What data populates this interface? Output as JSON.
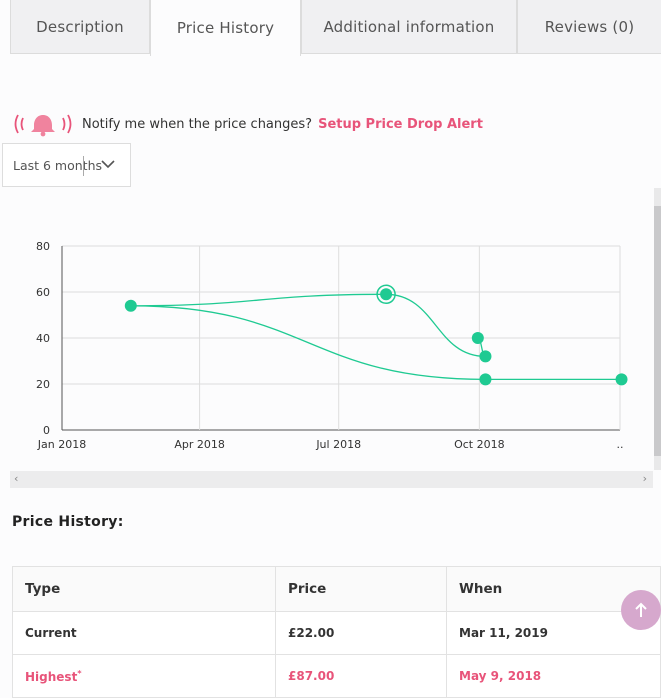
{
  "tabs": [
    {
      "label": "Description",
      "active": false
    },
    {
      "label": "Price History",
      "active": true
    },
    {
      "label": "Additional information",
      "active": false
    },
    {
      "label": "Reviews (0)",
      "active": false
    }
  ],
  "notify": {
    "text": "Notify me when the price changes?",
    "link": "Setup Price Drop Alert",
    "icon": "bell-alert-icon"
  },
  "range": {
    "selected": "Last 6 months"
  },
  "chart_data": {
    "type": "line",
    "title": "",
    "xlabel": "",
    "ylabel": "",
    "x_tick_labels": [
      "Jan 2018",
      "Apr 2018",
      "Jul 2018",
      "Oct 2018",
      ".."
    ],
    "y_ticks": [
      0,
      20,
      40,
      60,
      80
    ],
    "ylim": [
      0,
      80
    ],
    "grid": true,
    "color": "#1fca92",
    "points": [
      {
        "x": "2018-09-30",
        "y": 40
      },
      {
        "x": "2018-10-05",
        "y": 32
      },
      {
        "x": "2018-08-01",
        "y": 59
      },
      {
        "x": "2018-02-15",
        "y": 54
      },
      {
        "x": "2018-10-05",
        "y": 22
      },
      {
        "x": "2019-01-02",
        "y": 22
      }
    ],
    "highlighted_point": {
      "x": "2018-08-01",
      "y": 59
    }
  },
  "history": {
    "title": "Price History:",
    "columns": [
      "Type",
      "Price",
      "When"
    ],
    "rows": [
      {
        "type": "Current",
        "price": "£22.00",
        "when": "Mar 11, 2019"
      },
      {
        "type": "Highest",
        "marker": "*",
        "price": "£87.00",
        "when": "May 9, 2018"
      }
    ]
  },
  "colors": {
    "accent": "#e8547a",
    "line": "#1fca92",
    "back_to_top": "#d6a8cd"
  }
}
